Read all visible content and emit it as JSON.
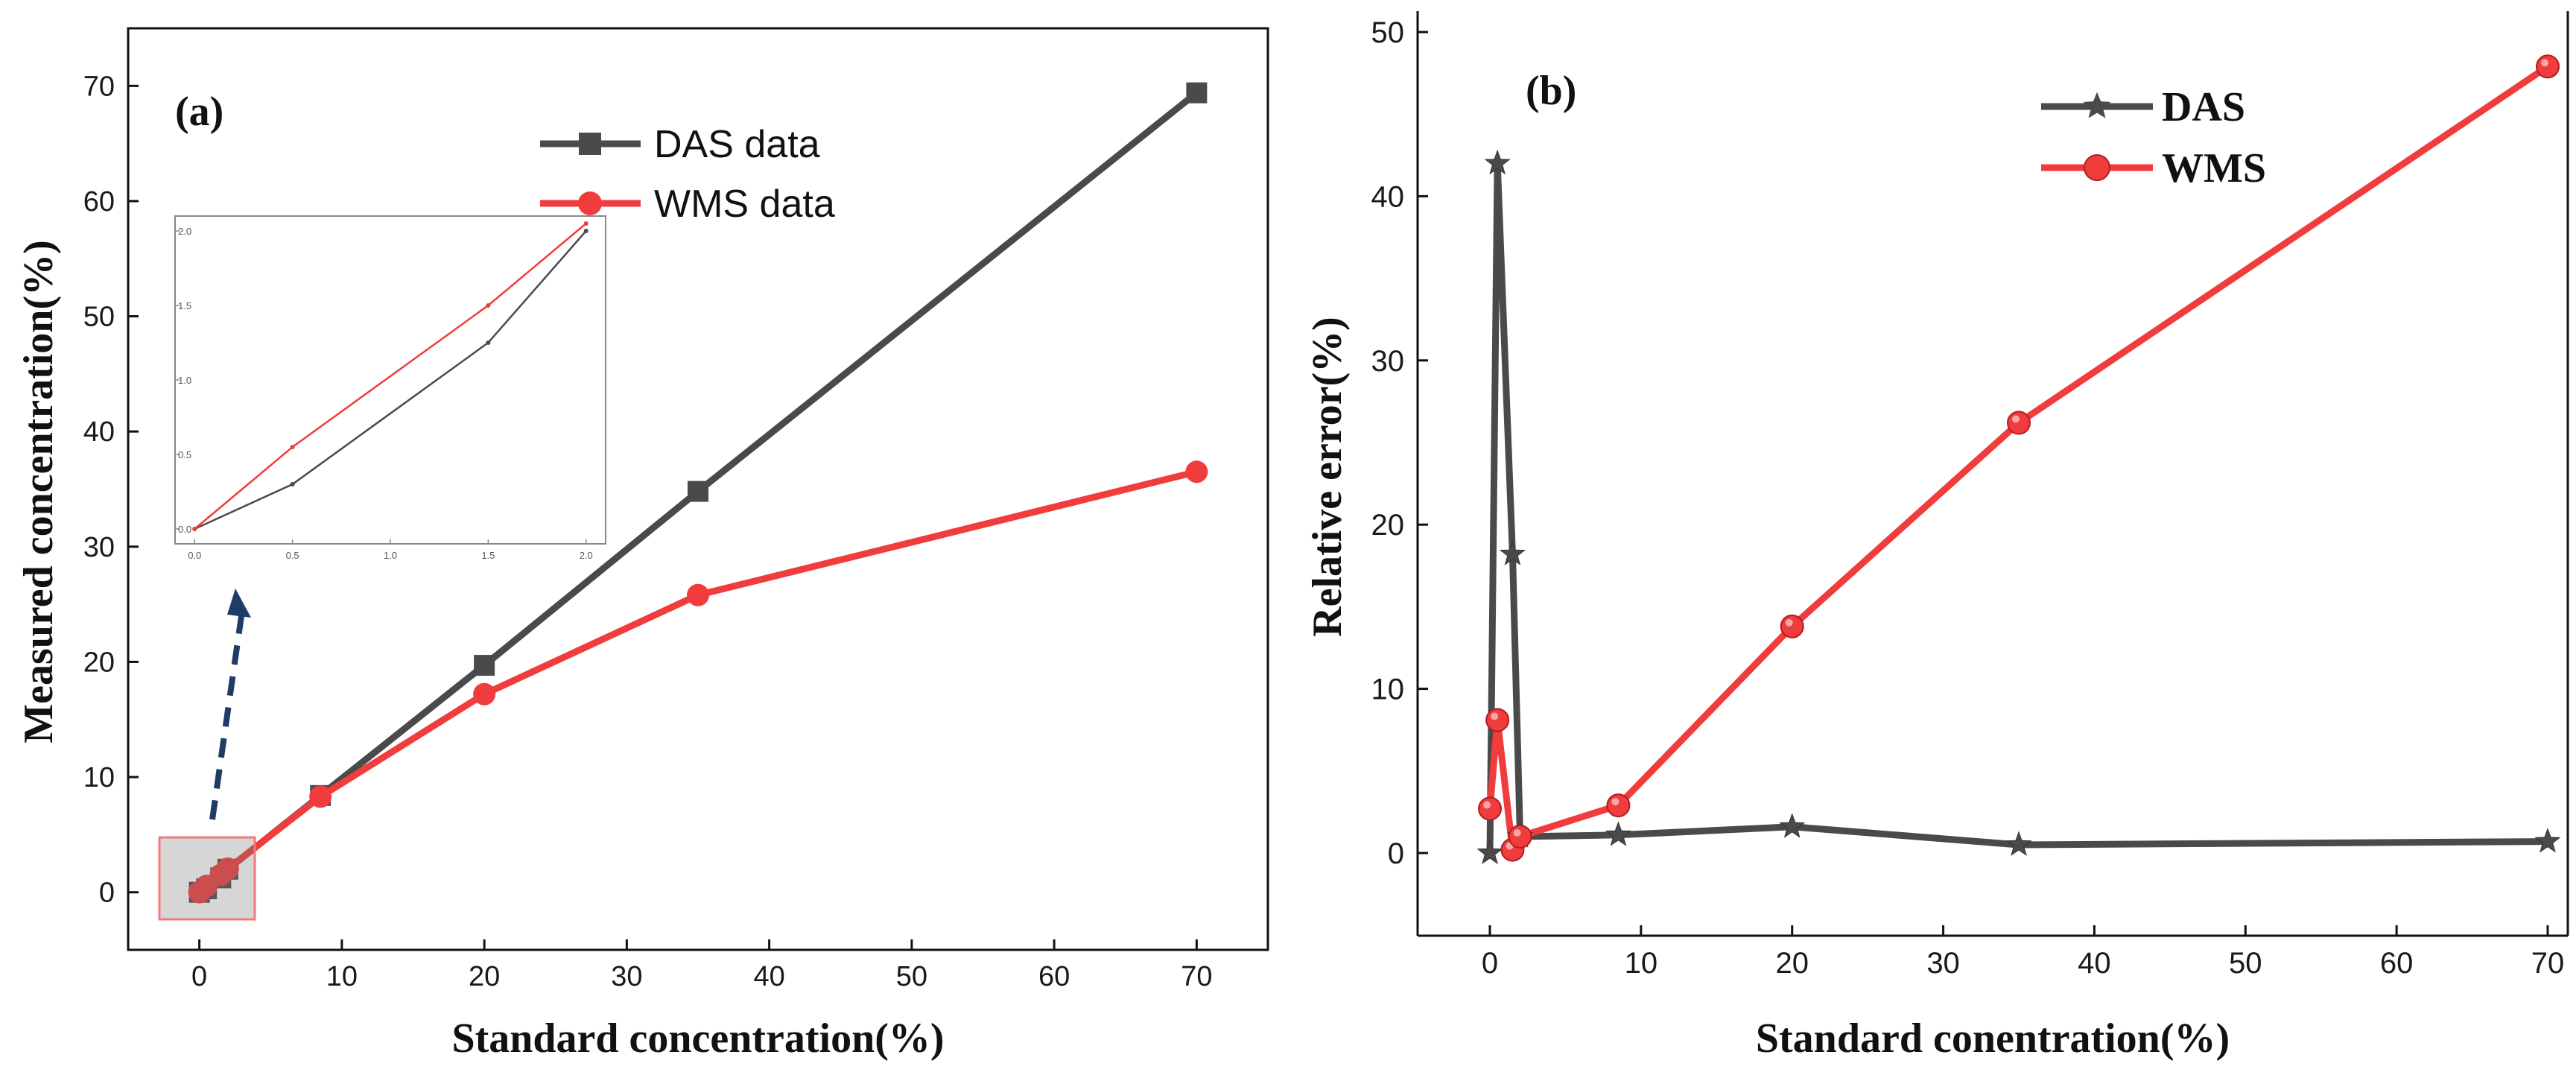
{
  "colors": {
    "das": "#4a4a4a",
    "wms": "#f03c3c",
    "axis": "#111111",
    "arrow": "#1f3b66"
  },
  "chart_data": [
    {
      "panel": "(a)",
      "type": "line",
      "xlabel": "Standard concentration(%)",
      "ylabel": "Measured concentration(%)",
      "xlim": [
        -5,
        75
      ],
      "ylim": [
        -5,
        75
      ],
      "xticks": [
        0,
        10,
        20,
        30,
        40,
        50,
        60,
        70
      ],
      "yticks": [
        0,
        10,
        20,
        30,
        40,
        50,
        60,
        70
      ],
      "legend": [
        "DAS data",
        "WMS data"
      ],
      "series": [
        {
          "name": "DAS data",
          "marker": "square",
          "x": [
            0,
            0.5,
            1.5,
            2,
            8.5,
            20,
            35,
            70
          ],
          "y": [
            0,
            0.3,
            1.25,
            2.0,
            8.4,
            19.7,
            34.8,
            69.4
          ]
        },
        {
          "name": "WMS data",
          "marker": "circle",
          "x": [
            0,
            0.5,
            1.5,
            2,
            8.5,
            20,
            35,
            70
          ],
          "y": [
            0,
            0.55,
            1.5,
            2.05,
            8.3,
            17.2,
            25.8,
            36.5
          ]
        }
      ],
      "inset": {
        "xlim": [
          -0.1,
          2.1
        ],
        "ylim": [
          -0.1,
          2.1
        ],
        "xticks": [
          "0.0",
          "0.5",
          "1.0",
          "1.5",
          "2.0"
        ],
        "yticks": [
          "0.0",
          "0.5",
          "1.0",
          "1.5",
          "2.0"
        ],
        "series": [
          {
            "name": "DAS data",
            "x": [
              0,
              0.5,
              1.5,
              2.0
            ],
            "y": [
              0,
              0.3,
              1.25,
              2.0
            ]
          },
          {
            "name": "WMS data",
            "x": [
              0,
              0.5,
              1.5,
              2.0
            ],
            "y": [
              0,
              0.55,
              1.5,
              2.05
            ]
          }
        ]
      }
    },
    {
      "panel": "(b)",
      "type": "line",
      "xlabel": "Standard conentration(%)",
      "ylabel": "Relative error(%)",
      "xlim": [
        -5,
        71
      ],
      "ylim": [
        -5,
        50
      ],
      "xticks": [
        0,
        10,
        20,
        30,
        40,
        50,
        60,
        70
      ],
      "yticks": [
        0,
        10,
        20,
        30,
        40,
        50
      ],
      "legend": [
        "DAS",
        "WMS"
      ],
      "series": [
        {
          "name": "DAS",
          "marker": "star",
          "x": [
            0,
            0.5,
            1.5,
            2,
            8.5,
            20,
            35,
            70
          ],
          "y": [
            0,
            42,
            18.2,
            1.0,
            1.1,
            1.6,
            0.5,
            0.7
          ]
        },
        {
          "name": "WMS",
          "marker": "circle",
          "x": [
            0,
            0.5,
            1.5,
            2,
            8.5,
            20,
            35,
            70
          ],
          "y": [
            2.7,
            8.1,
            0.2,
            1.0,
            2.9,
            13.8,
            26.2,
            47.9
          ]
        }
      ]
    }
  ]
}
